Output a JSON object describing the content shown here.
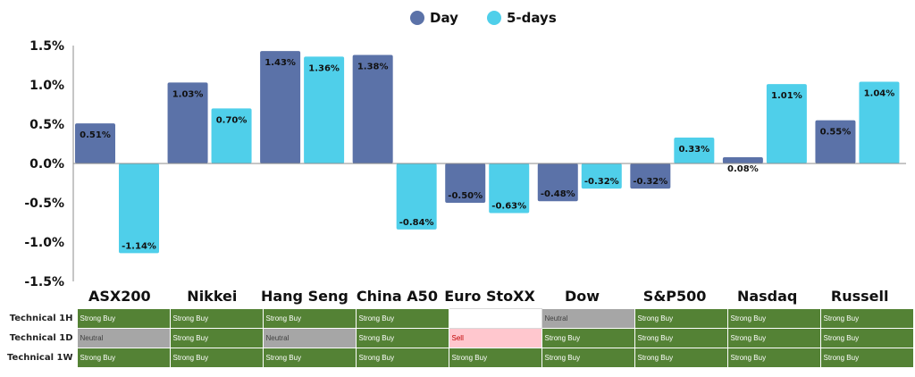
{
  "chart_data": {
    "type": "bar",
    "categories": [
      "ASX200",
      "Nikkei",
      "Hang Seng",
      "China A50",
      "Euro StoXX",
      "Dow",
      "S&P500",
      "Nasdaq",
      "Russell"
    ],
    "series": [
      {
        "name": "Day",
        "color": "#5b72a8",
        "values": [
          0.51,
          1.03,
          1.43,
          1.38,
          -0.5,
          -0.48,
          -0.32,
          0.08,
          0.55
        ]
      },
      {
        "name": "5-days",
        "color": "#4fcfea",
        "values": [
          -1.14,
          0.7,
          1.36,
          -0.84,
          -0.63,
          -0.32,
          0.33,
          1.01,
          1.04
        ]
      }
    ],
    "data_labels": [
      [
        "0.51%",
        "1.03%",
        "1.43%",
        "1.38%",
        "-0.50%",
        "-0.48%",
        "-0.32%",
        "0.08%",
        "0.55%"
      ],
      [
        "-1.14%",
        "0.70%",
        "1.36%",
        "-0.84%",
        "-0.63%",
        "-0.32%",
        "0.33%",
        "1.01%",
        "1.04%"
      ]
    ],
    "ylim": [
      -1.5,
      1.5
    ],
    "yticks": [
      1.5,
      1.0,
      0.5,
      0.0,
      -0.5,
      -1.0,
      -1.5
    ],
    "ytick_labels": [
      "1.5%",
      "1.0%",
      "0.5%",
      "0.0%",
      "-0.5%",
      "-1.0%",
      "-1.5%"
    ],
    "legend_position": "top-center",
    "grid": false
  },
  "technical_table": {
    "rows": [
      {
        "label": "Technical 1H",
        "cells": [
          "Strong Buy",
          "Strong Buy",
          "Strong Buy",
          "Strong Buy",
          "",
          "Neutral",
          "Strong Buy",
          "Strong Buy",
          "Strong Buy"
        ]
      },
      {
        "label": "Technical 1D",
        "cells": [
          "Neutral",
          "Strong Buy",
          "Neutral",
          "Strong Buy",
          "Sell",
          "Strong Buy",
          "Strong Buy",
          "Strong Buy",
          "Strong Buy"
        ]
      },
      {
        "label": "Technical 1W",
        "cells": [
          "Strong Buy",
          "Strong Buy",
          "Strong Buy",
          "Strong Buy",
          "Strong Buy",
          "Strong Buy",
          "Strong Buy",
          "Strong Buy",
          "Strong Buy"
        ]
      }
    ],
    "colors": {
      "Strong Buy": "#548235",
      "Neutral": "#a6a6a6",
      "Sell": "#ffc7ce"
    }
  }
}
